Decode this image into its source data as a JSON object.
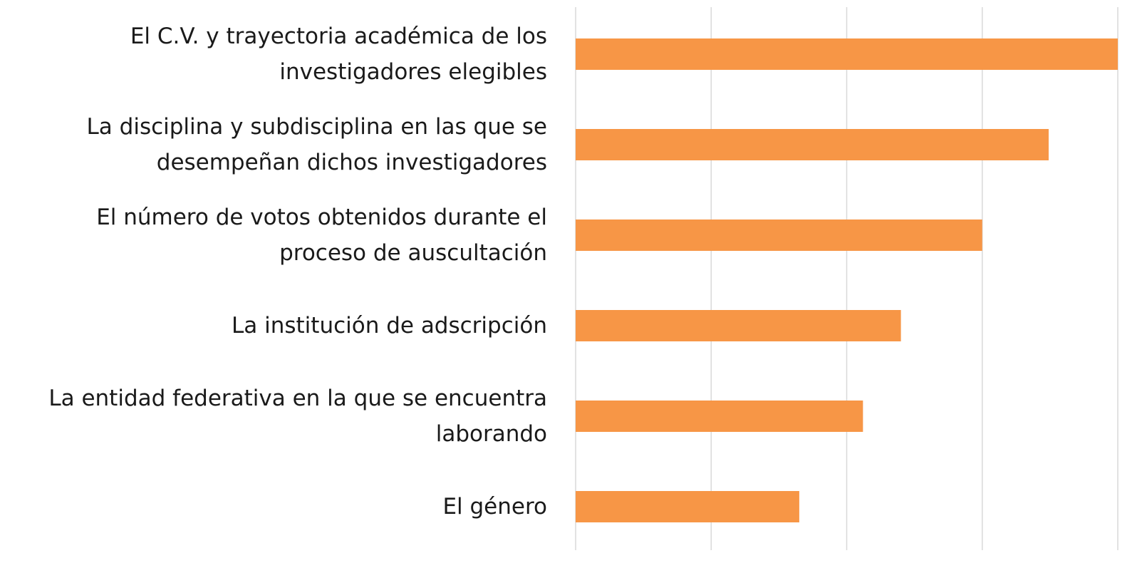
{
  "chart_data": {
    "type": "barh",
    "categories": [
      "El C.V. y trayectoria académica de los\ninvestigadores elegibles",
      "La disciplina y subdisciplina en las que se\ndesempeñan dichos investigadores",
      "El número de votos obtenidos durante el\nproceso de auscultación",
      "La institución de adscripción",
      "La entidad federativa en la que se encuentra\nlaborando",
      "El género"
    ],
    "values": [
      4.0,
      3.49,
      3.0,
      2.4,
      2.12,
      1.65
    ],
    "color": "#f79646",
    "xlim": [
      0,
      4
    ],
    "xticks": [
      0,
      1,
      2,
      3,
      4
    ],
    "grid": true
  }
}
